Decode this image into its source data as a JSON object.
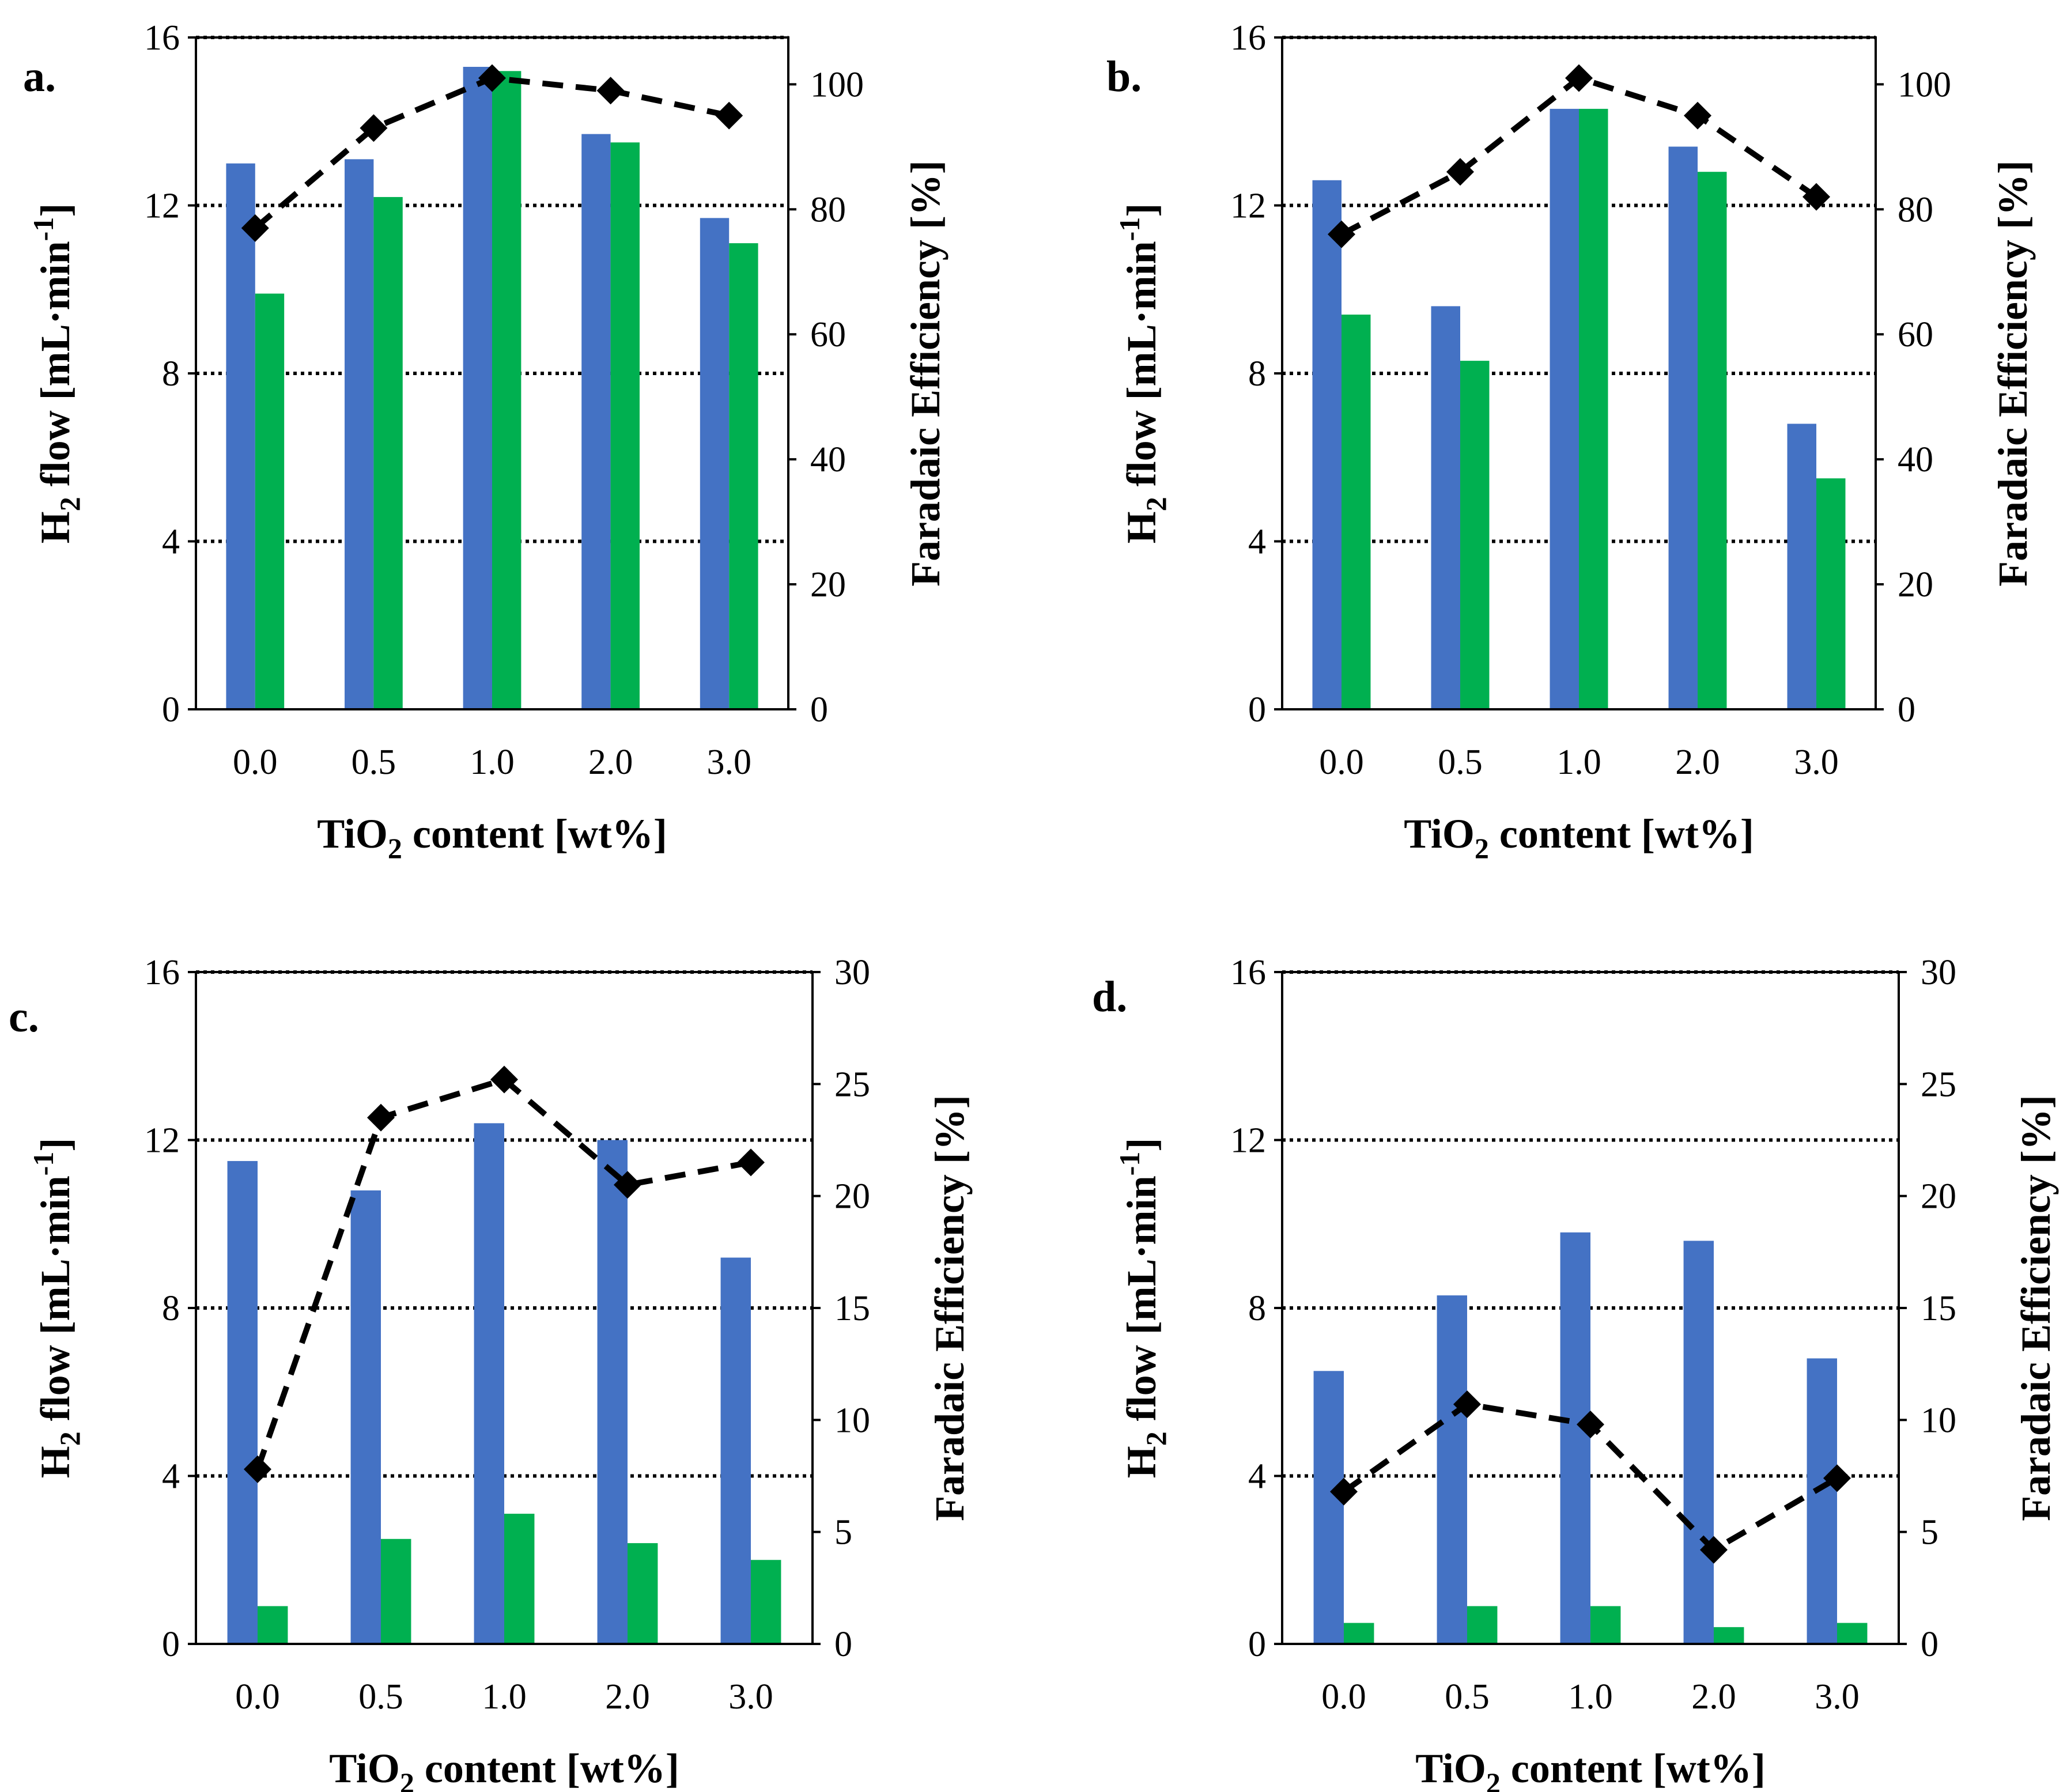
{
  "colors": {
    "bar_series_1": "#4472C4",
    "bar_series_2": "#00B050",
    "line": "#000000"
  },
  "chart_data": [
    {
      "type": "bar",
      "panel_label": "a.",
      "categories": [
        "0.0",
        "0.5",
        "1.0",
        "2.0",
        "3.0"
      ],
      "xlabel": {
        "main": "TiO",
        "sub": "2",
        "rest": " content [wt%]"
      },
      "ylabel": {
        "main": "H",
        "sub": "2",
        "rest": " flow [mL·min",
        "sup": "-1",
        "end": "]"
      },
      "y2label": "Faradaic Efficiency [%]",
      "ylim": [
        0,
        16
      ],
      "yticks": [
        "0",
        "4",
        "8",
        "12",
        "16"
      ],
      "y2lim": [
        0,
        107.5
      ],
      "y2ticks": [
        "0",
        "20",
        "40",
        "60",
        "80",
        "100"
      ],
      "grid": "horizontal dotted",
      "series": [
        {
          "name": "H2 flow (blue)",
          "axis": "left",
          "kind": "bar",
          "values": [
            13.0,
            13.1,
            15.3,
            13.7,
            11.7
          ]
        },
        {
          "name": "H2 flow (green)",
          "axis": "left",
          "kind": "bar",
          "values": [
            9.9,
            12.2,
            15.2,
            13.5,
            11.1
          ]
        },
        {
          "name": "Faradaic Efficiency",
          "axis": "right",
          "kind": "line-dashed-diamond",
          "values": [
            77,
            93,
            101,
            99,
            95
          ]
        }
      ]
    },
    {
      "type": "bar",
      "panel_label": "b.",
      "categories": [
        "0.0",
        "0.5",
        "1.0",
        "2.0",
        "3.0"
      ],
      "xlabel": {
        "main": "TiO",
        "sub": "2",
        "rest": " content [wt%]"
      },
      "ylabel": {
        "main": "H",
        "sub": "2",
        "rest": " flow [mL·min",
        "sup": "-1",
        "end": "]"
      },
      "y2label": "Faradaic Efficiency [%]",
      "ylim": [
        0,
        16
      ],
      "yticks": [
        "0",
        "4",
        "8",
        "12",
        "16"
      ],
      "y2lim": [
        0,
        107.5
      ],
      "y2ticks": [
        "0",
        "20",
        "40",
        "60",
        "80",
        "100"
      ],
      "grid": "horizontal dotted",
      "series": [
        {
          "name": "H2 flow (blue)",
          "axis": "left",
          "kind": "bar",
          "values": [
            12.6,
            9.6,
            14.3,
            13.4,
            6.8
          ]
        },
        {
          "name": "H2 flow (green)",
          "axis": "left",
          "kind": "bar",
          "values": [
            9.4,
            8.3,
            14.3,
            12.8,
            5.5
          ]
        },
        {
          "name": "Faradaic Efficiency",
          "axis": "right",
          "kind": "line-dashed-diamond",
          "values": [
            76,
            86,
            101,
            95,
            82
          ]
        }
      ]
    },
    {
      "type": "bar",
      "panel_label": "c.",
      "categories": [
        "0.0",
        "0.5",
        "1.0",
        "2.0",
        "3.0"
      ],
      "xlabel": {
        "main": "TiO",
        "sub": "2",
        "rest": " content [wt%]"
      },
      "ylabel": {
        "main": "H",
        "sub": "2",
        "rest": " flow [mL·min",
        "sup": "-1",
        "end": "]"
      },
      "y2label": "Faradaic Efficiency [%]",
      "ylim": [
        0,
        16
      ],
      "yticks": [
        "0",
        "4",
        "8",
        "12",
        "16"
      ],
      "y2lim": [
        0,
        30
      ],
      "y2ticks": [
        "0",
        "5",
        "10",
        "15",
        "20",
        "25",
        "30"
      ],
      "grid": "horizontal dotted",
      "series": [
        {
          "name": "H2 flow (blue)",
          "axis": "left",
          "kind": "bar",
          "values": [
            11.5,
            10.8,
            12.4,
            12.0,
            9.2
          ]
        },
        {
          "name": "H2 flow (green)",
          "axis": "left",
          "kind": "bar",
          "values": [
            0.9,
            2.5,
            3.1,
            2.4,
            2.0
          ]
        },
        {
          "name": "Faradaic Efficiency",
          "axis": "right",
          "kind": "line-dashed-diamond",
          "values": [
            7.8,
            23.5,
            25.2,
            20.5,
            21.5
          ]
        }
      ]
    },
    {
      "type": "bar",
      "panel_label": "d.",
      "categories": [
        "0.0",
        "0.5",
        "1.0",
        "2.0",
        "3.0"
      ],
      "xlabel": {
        "main": "TiO",
        "sub": "2",
        "rest": " content [wt%]"
      },
      "ylabel": {
        "main": "H",
        "sub": "2",
        "rest": " flow [mL·min",
        "sup": "-1",
        "end": "]"
      },
      "y2label": "Faradaic Efficiency [%]",
      "ylim": [
        0,
        16
      ],
      "yticks": [
        "0",
        "4",
        "8",
        "12",
        "16"
      ],
      "y2lim": [
        0,
        30
      ],
      "y2ticks": [
        "0",
        "5",
        "10",
        "15",
        "20",
        "25",
        "30"
      ],
      "grid": "horizontal dotted",
      "series": [
        {
          "name": "H2 flow (blue)",
          "axis": "left",
          "kind": "bar",
          "values": [
            6.5,
            8.3,
            9.8,
            9.6,
            6.8
          ]
        },
        {
          "name": "H2 flow (green)",
          "axis": "left",
          "kind": "bar",
          "values": [
            0.5,
            0.9,
            0.9,
            0.4,
            0.5
          ]
        },
        {
          "name": "Faradaic Efficiency",
          "axis": "right",
          "kind": "line-dashed-diamond",
          "values": [
            6.8,
            10.7,
            9.8,
            4.2,
            7.4
          ]
        }
      ]
    }
  ]
}
